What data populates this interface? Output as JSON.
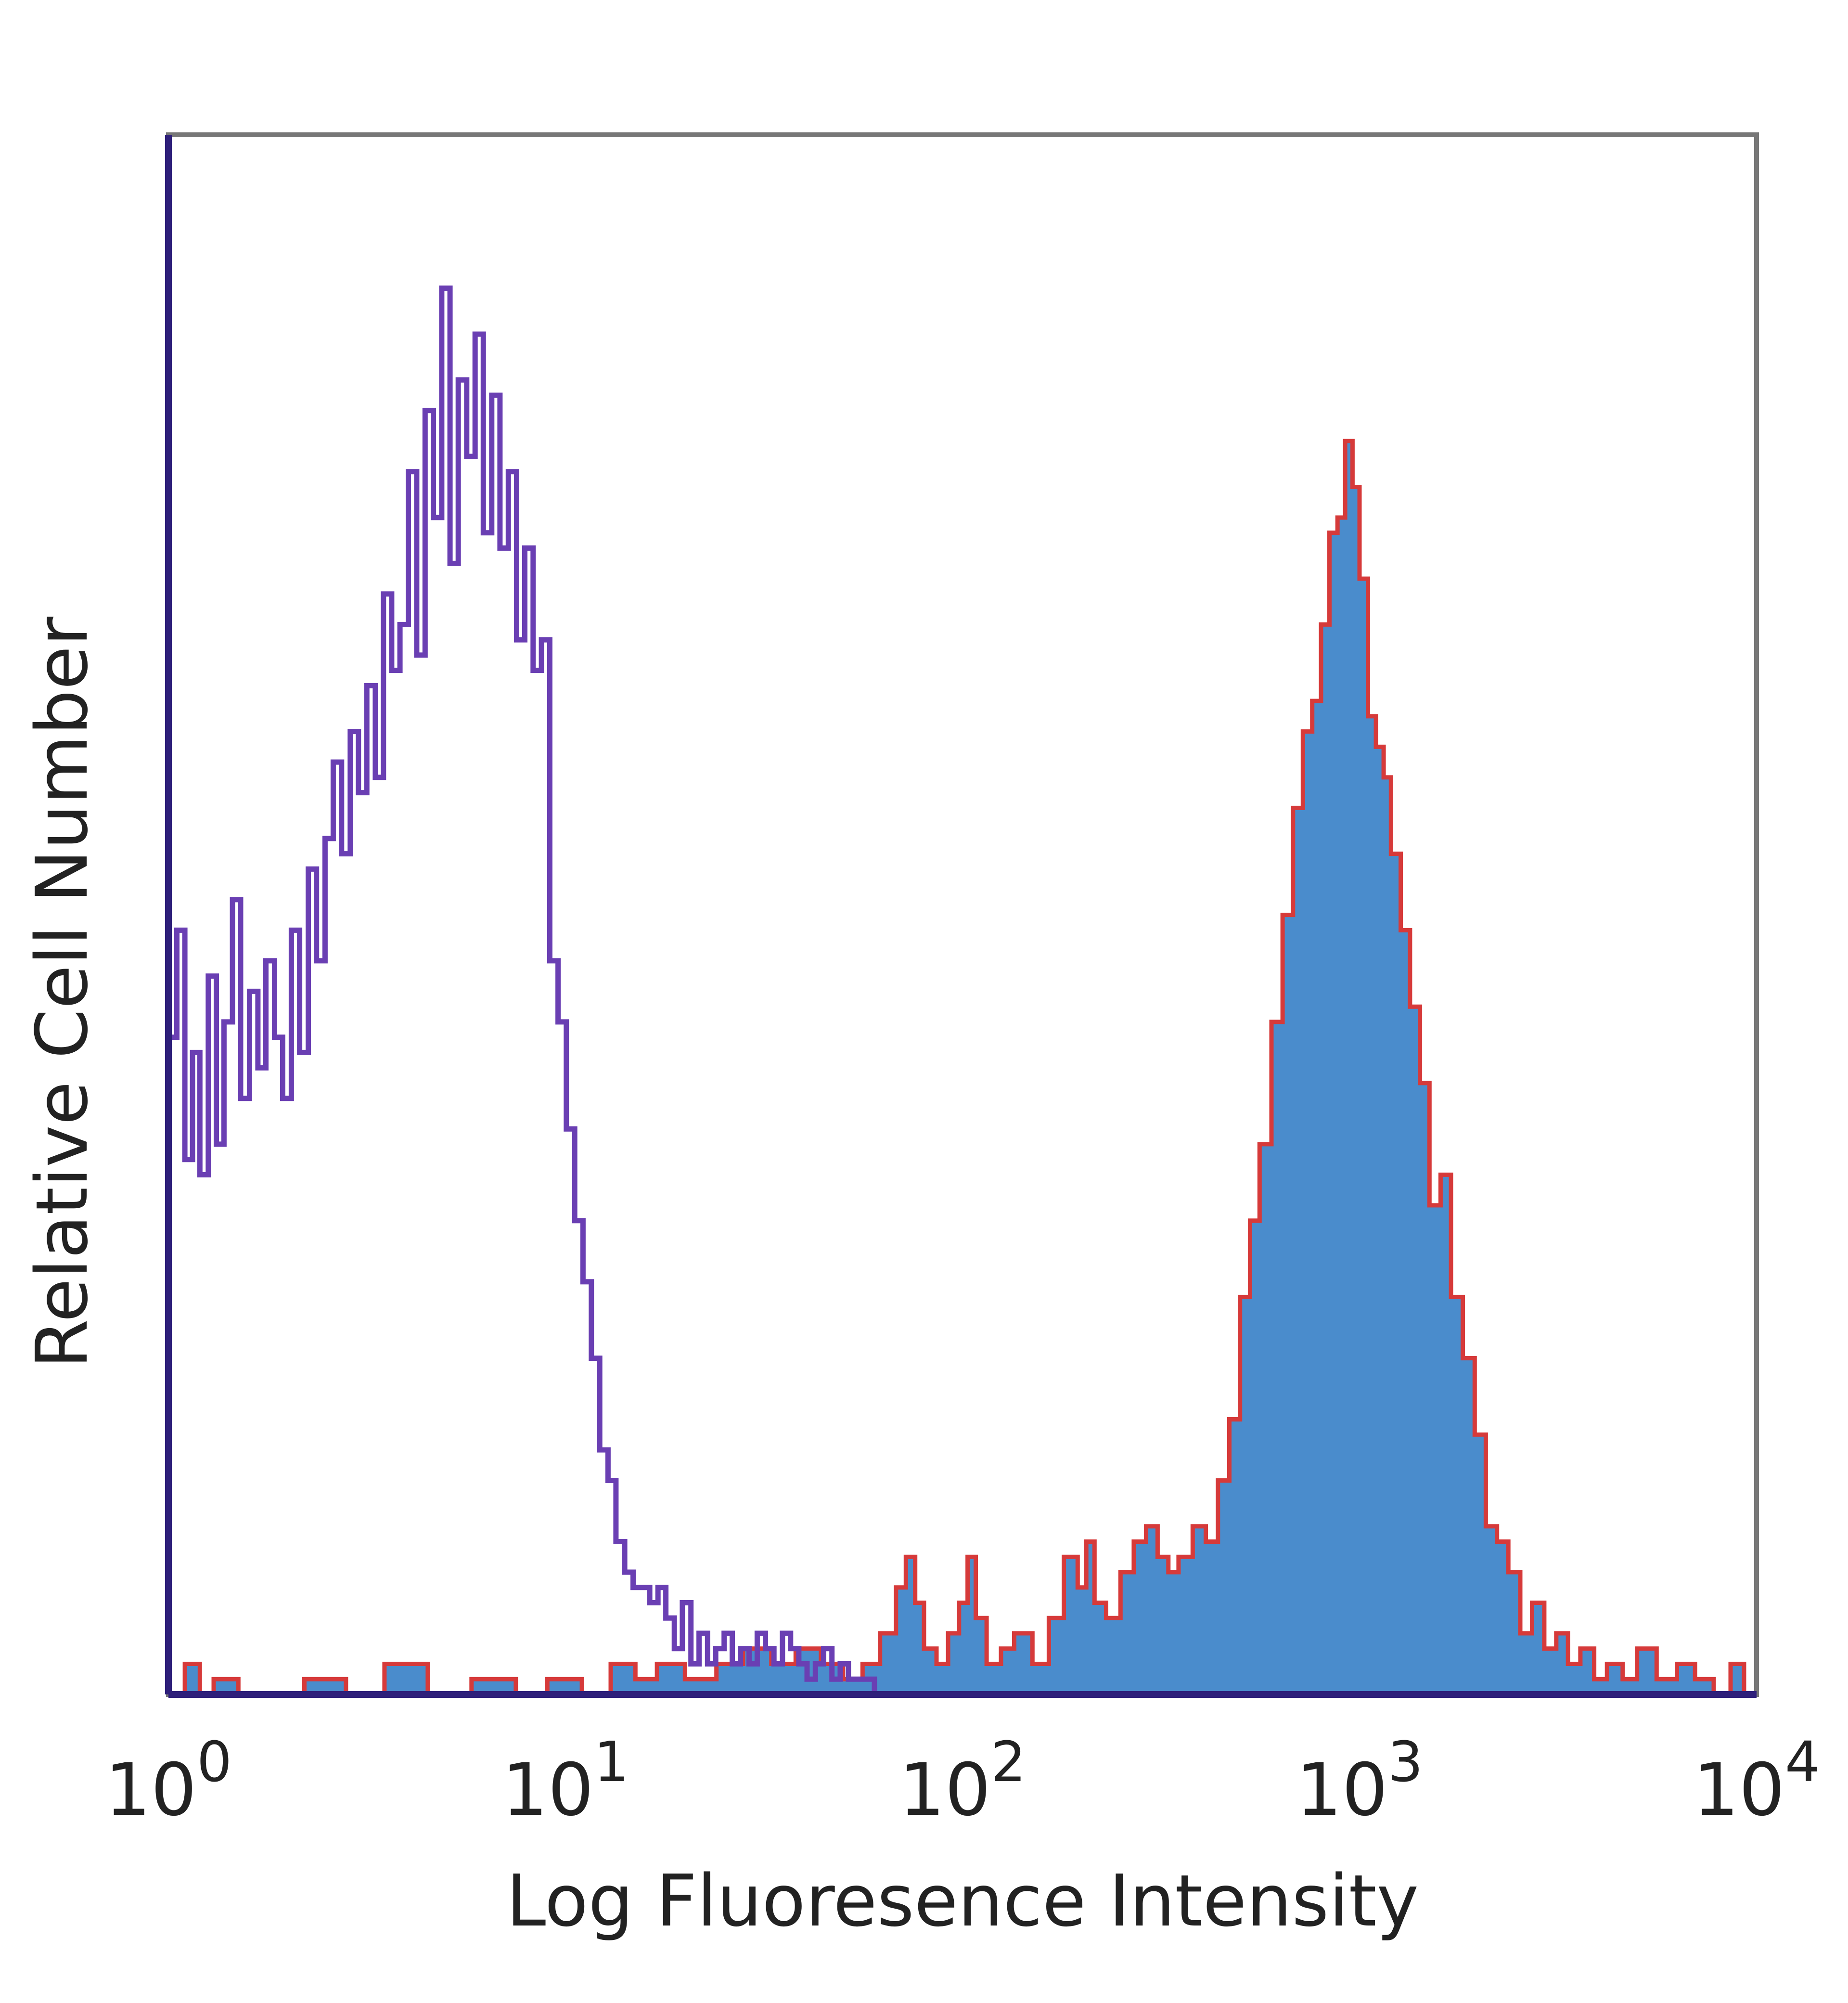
{
  "chart_data": {
    "type": "area",
    "title": "",
    "xlabel": "Log Fluoresence Intensity",
    "ylabel": "Relative Cell Number",
    "xscale": "log",
    "xlim": [
      1,
      10000
    ],
    "ylim": [
      0,
      100
    ],
    "grid": false,
    "legend": "none",
    "x_ticks": [
      {
        "base": "10",
        "exp": "0",
        "value": 1
      },
      {
        "base": "10",
        "exp": "1",
        "value": 10
      },
      {
        "base": "10",
        "exp": "2",
        "value": 100
      },
      {
        "base": "10",
        "exp": "3",
        "value": 1000
      },
      {
        "base": "10",
        "exp": "4",
        "value": 10000
      }
    ],
    "series": [
      {
        "style": "outline",
        "color": "#6a3fb3",
        "x": [
          1.0,
          1.05,
          1.1,
          1.15,
          1.2,
          1.26,
          1.32,
          1.38,
          1.45,
          1.52,
          1.6,
          1.68,
          1.76,
          1.85,
          1.94,
          2.04,
          2.14,
          2.25,
          2.36,
          2.48,
          2.6,
          2.73,
          2.87,
          3.01,
          3.16,
          3.32,
          3.48,
          3.65,
          3.83,
          4.02,
          4.22,
          4.43,
          4.65,
          4.88,
          5.12,
          5.37,
          5.64,
          5.92,
          6.21,
          6.52,
          6.84,
          7.18,
          7.53,
          7.9,
          8.29,
          8.7,
          9.13,
          9.58,
          10.05,
          10.55,
          11.07,
          11.62,
          12.2,
          12.8,
          13.4,
          14.1,
          14.8,
          15.5,
          16.3,
          17.1,
          17.9,
          18.8,
          19.7,
          20.7,
          21.7,
          22.8,
          23.9,
          25.1,
          26.3,
          27.6,
          29.0,
          30.4,
          31.9,
          33.5,
          35.2,
          36.9,
          38.7,
          40.6,
          42.6,
          44.7,
          46.9,
          49.2,
          51.6,
          54.2,
          60.0,
          80.0,
          120.0,
          200.0,
          400.0,
          10000.0
        ],
        "y": [
          43,
          50,
          35,
          42,
          34,
          47,
          36,
          44,
          52,
          39,
          46,
          41,
          48,
          43,
          39,
          50,
          42,
          54,
          48,
          56,
          61,
          55,
          63,
          59,
          66,
          60,
          72,
          67,
          70,
          80,
          68,
          84,
          77,
          92,
          74,
          86,
          81,
          89,
          76,
          85,
          75,
          80,
          69,
          75,
          67,
          69,
          48,
          44,
          37,
          31,
          27,
          22,
          16,
          14,
          10,
          8,
          7,
          7,
          6,
          7,
          5,
          3,
          6,
          2,
          4,
          2,
          3,
          4,
          2,
          3,
          2,
          4,
          3,
          2,
          4,
          3,
          2,
          1,
          2,
          3,
          1,
          2,
          1,
          1,
          0,
          0,
          0,
          0,
          0,
          0
        ]
      },
      {
        "style": "filled",
        "color": "#4a8ccc",
        "edge_color": "#d63a3a",
        "x": [
          1.0,
          1.1,
          1.2,
          1.3,
          1.5,
          1.8,
          2.2,
          2.8,
          3.5,
          4.5,
          5.8,
          7.5,
          9.0,
          11.0,
          13.0,
          15.0,
          17.0,
          20.0,
          24.0,
          28.0,
          33.0,
          38.0,
          44.0,
          50.0,
          56.0,
          62.0,
          68.0,
          72.0,
          76.0,
          80.0,
          86.0,
          92.0,
          98.0,
          103.0,
          108.0,
          115.0,
          125.0,
          135.0,
          150.0,
          165.0,
          180.0,
          195.0,
          205.0,
          215.0,
          230.0,
          250.0,
          270.0,
          290.0,
          310.0,
          330.0,
          350.0,
          380.0,
          410.0,
          440.0,
          470.0,
          500.0,
          530.0,
          560.0,
          600.0,
          640.0,
          680.0,
          720.0,
          760.0,
          800.0,
          840.0,
          880.0,
          920.0,
          960.0,
          1000.0,
          1050.0,
          1100.0,
          1150.0,
          1200.0,
          1270.0,
          1340.0,
          1420.0,
          1500.0,
          1600.0,
          1700.0,
          1820.0,
          1950.0,
          2080.0,
          2220.0,
          2370.0,
          2540.0,
          2720.0,
          2920.0,
          3130.0,
          3350.0,
          3600.0,
          3900.0,
          4200.0,
          4600.0,
          5000.0,
          5600.0,
          6300.0,
          7000.0,
          7800.0,
          8600.0,
          9300.0,
          10000.0
        ],
        "y": [
          0,
          2,
          0,
          1,
          0,
          0,
          1,
          0,
          2,
          0,
          1,
          0,
          1,
          0,
          2,
          1,
          2,
          1,
          2,
          3,
          2,
          3,
          2,
          1,
          2,
          4,
          7,
          9,
          6,
          3,
          2,
          4,
          6,
          9,
          5,
          2,
          3,
          4,
          2,
          5,
          9,
          7,
          10,
          6,
          5,
          8,
          10,
          11,
          9,
          8,
          9,
          11,
          10,
          14,
          18,
          26,
          31,
          36,
          44,
          51,
          58,
          63,
          65,
          70,
          76,
          77,
          82,
          79,
          73,
          64,
          62,
          60,
          55,
          50,
          45,
          40,
          32,
          34,
          26,
          22,
          17,
          11,
          10,
          8,
          4,
          6,
          3,
          4,
          2,
          3,
          1,
          2,
          1,
          3,
          1,
          2,
          1,
          0,
          2,
          0,
          0
        ]
      }
    ]
  }
}
